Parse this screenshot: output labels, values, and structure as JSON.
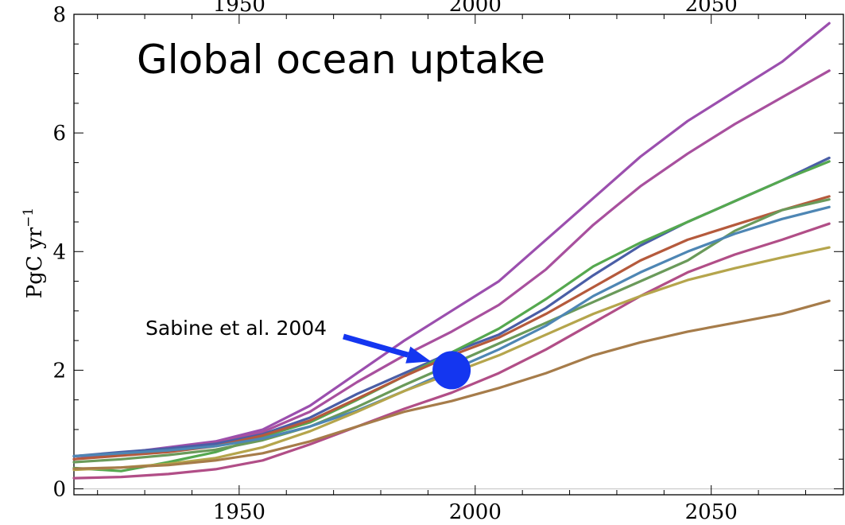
{
  "chart_data": {
    "type": "line",
    "title": "Global ocean uptake",
    "xlabel": "",
    "ylabel": "PgC yr",
    "ylabel_exponent": "−1",
    "xlim": [
      1915,
      2078
    ],
    "ylim": [
      -0.1,
      8.0
    ],
    "x_ticks": [
      1950,
      2000,
      2050
    ],
    "y_ticks": [
      0,
      2,
      4,
      6,
      8
    ],
    "grid": false,
    "x": [
      1915,
      1925,
      1935,
      1945,
      1955,
      1965,
      1975,
      1985,
      1995,
      2005,
      2015,
      2025,
      2035,
      2045,
      2055,
      2065,
      2075
    ],
    "series": [
      {
        "color": "#9b4fae",
        "values": [
          0.55,
          0.6,
          0.7,
          0.8,
          1.0,
          1.4,
          1.95,
          2.5,
          3.0,
          3.5,
          4.2,
          4.9,
          5.6,
          6.2,
          6.7,
          7.2,
          7.85
        ]
      },
      {
        "color": "#a8509e",
        "values": [
          0.5,
          0.6,
          0.68,
          0.78,
          0.96,
          1.3,
          1.8,
          2.25,
          2.65,
          3.1,
          3.7,
          4.45,
          5.1,
          5.65,
          6.15,
          6.6,
          7.05
        ]
      },
      {
        "color": "#4a5ea6",
        "values": [
          0.55,
          0.62,
          0.68,
          0.76,
          0.92,
          1.2,
          1.6,
          1.95,
          2.3,
          2.6,
          3.05,
          3.6,
          4.1,
          4.5,
          4.85,
          5.2,
          5.58
        ]
      },
      {
        "color": "#55a84f",
        "values": [
          0.35,
          0.3,
          0.45,
          0.62,
          0.88,
          1.12,
          1.5,
          1.9,
          2.3,
          2.7,
          3.2,
          3.75,
          4.15,
          4.5,
          4.85,
          5.2,
          5.52
        ]
      },
      {
        "color": "#b55a3c",
        "values": [
          0.5,
          0.56,
          0.62,
          0.72,
          0.9,
          1.15,
          1.52,
          1.9,
          2.25,
          2.55,
          2.95,
          3.4,
          3.85,
          4.2,
          4.45,
          4.7,
          4.93
        ]
      },
      {
        "color": "#6a9a5a",
        "values": [
          0.45,
          0.5,
          0.57,
          0.66,
          0.82,
          1.05,
          1.38,
          1.75,
          2.1,
          2.45,
          2.8,
          3.15,
          3.5,
          3.85,
          4.35,
          4.7,
          4.88
        ]
      },
      {
        "color": "#4e86b4",
        "values": [
          0.55,
          0.6,
          0.65,
          0.72,
          0.85,
          1.05,
          1.32,
          1.65,
          2.0,
          2.35,
          2.75,
          3.25,
          3.65,
          4.0,
          4.3,
          4.55,
          4.75
        ]
      },
      {
        "color": "#b14e87",
        "values": [
          0.18,
          0.2,
          0.25,
          0.33,
          0.48,
          0.75,
          1.05,
          1.35,
          1.62,
          1.95,
          2.35,
          2.8,
          3.25,
          3.65,
          3.95,
          4.2,
          4.47
        ]
      },
      {
        "color": "#b5a54c",
        "values": [
          0.32,
          0.36,
          0.42,
          0.52,
          0.7,
          0.97,
          1.3,
          1.65,
          1.95,
          2.25,
          2.6,
          2.95,
          3.25,
          3.52,
          3.72,
          3.9,
          4.07
        ]
      },
      {
        "color": "#a67c4a",
        "values": [
          0.34,
          0.36,
          0.4,
          0.48,
          0.6,
          0.8,
          1.05,
          1.3,
          1.48,
          1.7,
          1.95,
          2.25,
          2.47,
          2.65,
          2.8,
          2.95,
          3.17
        ]
      }
    ],
    "annotation": {
      "label": "Sabine et al. 2004",
      "x": 1995,
      "y": 2.0,
      "marker_color": "#1436f0",
      "arrow_color": "#1436f0"
    }
  }
}
